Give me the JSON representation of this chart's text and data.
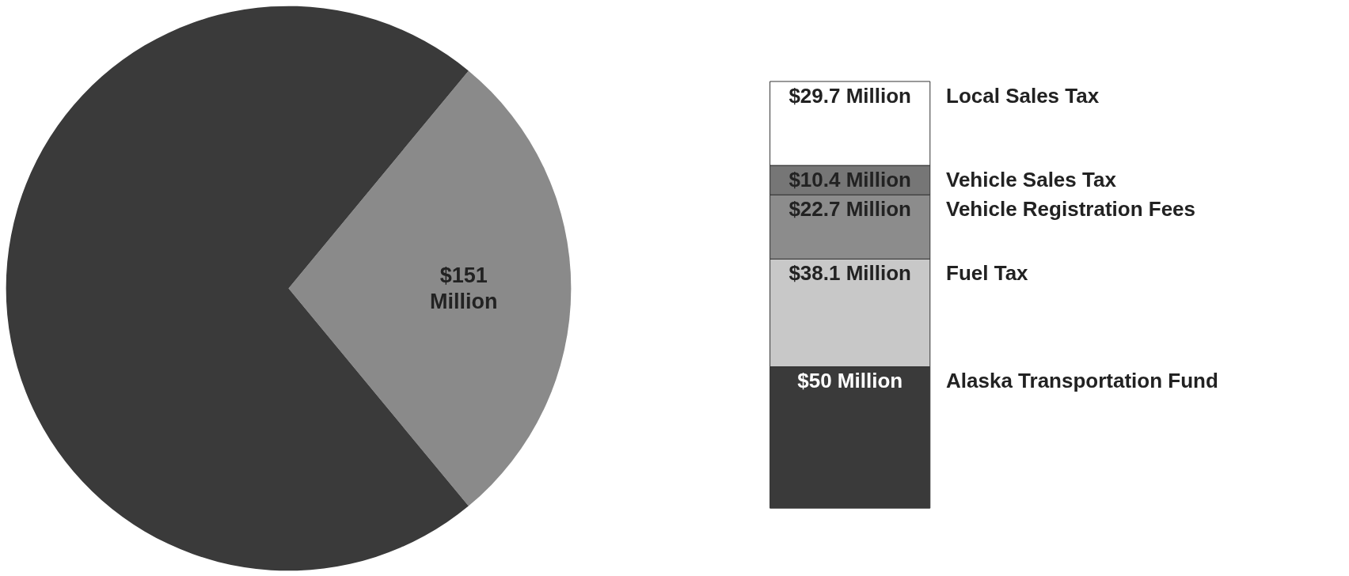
{
  "chart_data": [
    {
      "type": "pie",
      "categories": [
        null,
        null
      ],
      "values": [
        151,
        388
      ],
      "colors": [
        "#8a8a8a",
        "#3a3a3a"
      ],
      "value_labels": [
        "$151 Million",
        null
      ]
    },
    {
      "type": "bar",
      "stacked": true,
      "categories": [
        null
      ],
      "series": [
        {
          "name": "Alaska Transportation Fund",
          "color": "#3a3a3a",
          "values": [
            50
          ],
          "value_labels": [
            "$50 Million"
          ]
        },
        {
          "name": "Fuel Tax",
          "color": "#c8c8c8",
          "values": [
            38.1
          ],
          "value_labels": [
            "$38.1 Million"
          ]
        },
        {
          "name": "Vehicle Registration Fees",
          "color": "#8c8c8c",
          "values": [
            22.7
          ],
          "value_labels": [
            "$22.7 Million"
          ]
        },
        {
          "name": "Vehicle Sales Tax",
          "color": "#767676",
          "values": [
            10.4
          ],
          "value_labels": [
            "$10.4 Million"
          ]
        },
        {
          "name": "Local Sales Tax",
          "color": "#ffffff",
          "values": [
            29.7
          ],
          "value_labels": [
            "$29.7 Million"
          ]
        }
      ]
    }
  ]
}
